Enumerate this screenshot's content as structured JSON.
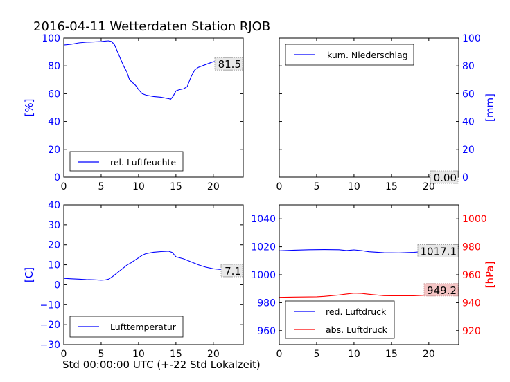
{
  "title": "2016-04-11 Wetterdaten Station RJOB",
  "footer_xlabel": "Std 00:00:00 UTC (+-22 Std Lokalzeit)",
  "colors": {
    "blue": "#0000ff",
    "red": "#ff0000",
    "black": "#000000",
    "readout_bg": "#e8e8e8",
    "readout_red_bg": "#f4c4c4"
  },
  "chart_data": [
    {
      "id": "humidity",
      "type": "line",
      "ylabel": "[%]",
      "ylabel_side": "left",
      "xlim": [
        0,
        24
      ],
      "ylim": [
        0,
        100
      ],
      "xticks": [
        0,
        5,
        10,
        15,
        20
      ],
      "yticks": [
        0,
        20,
        40,
        60,
        80,
        100
      ],
      "legend_position": "lower-left",
      "readout": "81.5",
      "series": [
        {
          "name": "rel. Luftfeuchte",
          "color": "#0000ff",
          "x": [
            0,
            1,
            2,
            3,
            4,
            5,
            5.5,
            6,
            6.4,
            6.8,
            7.2,
            7.6,
            8,
            8.4,
            8.8,
            9.2,
            9.6,
            10,
            10.5,
            11,
            12,
            13,
            13.5,
            14,
            14.3,
            14.6,
            15,
            15.5,
            16,
            16.5,
            17,
            17.5,
            18,
            19,
            20,
            20.5,
            21,
            22,
            23,
            24
          ],
          "y": [
            95,
            95.5,
            96.5,
            97,
            97.2,
            97.5,
            97.8,
            98,
            97.5,
            95,
            90,
            85,
            80,
            76,
            70,
            68,
            66,
            63,
            60,
            59,
            58,
            57.5,
            57,
            56.5,
            56,
            58,
            62,
            63,
            63.5,
            65,
            72,
            77,
            79,
            81,
            83,
            83.2,
            82,
            81.5,
            81.5,
            81.5
          ]
        }
      ]
    },
    {
      "id": "precipitation",
      "type": "line",
      "ylabel": "[mm]",
      "ylabel_side": "right",
      "xlim": [
        0,
        24
      ],
      "ylim": [
        0,
        100
      ],
      "xticks": [
        0,
        5,
        10,
        15,
        20
      ],
      "yticks": [
        0,
        20,
        40,
        60,
        80,
        100
      ],
      "legend_position": "upper-left",
      "readout": "0.00",
      "series": [
        {
          "name": "kum. Niederschlag",
          "color": "#0000ff",
          "x": [
            0,
            24
          ],
          "y": [
            0,
            0
          ]
        }
      ]
    },
    {
      "id": "temperature",
      "type": "line",
      "ylabel": "[C]",
      "ylabel_side": "left",
      "xlim": [
        0,
        24
      ],
      "ylim": [
        -30,
        40
      ],
      "xticks": [
        0,
        5,
        10,
        15,
        20
      ],
      "yticks": [
        -30,
        -20,
        -10,
        0,
        10,
        20,
        30,
        40
      ],
      "legend_position": "lower-left",
      "readout": "7.1",
      "series": [
        {
          "name": "Lufttemperatur",
          "color": "#0000ff",
          "x": [
            0,
            1,
            2,
            3,
            4,
            5,
            5.5,
            6,
            6.5,
            7,
            7.5,
            8,
            8.5,
            9,
            9.5,
            10,
            10.5,
            11,
            12,
            13,
            14,
            14.5,
            15,
            16,
            17,
            18,
            19,
            20,
            21,
            22,
            23,
            24
          ],
          "y": [
            3.2,
            3,
            2.8,
            2.6,
            2.5,
            2.3,
            2.4,
            2.8,
            4,
            5.5,
            7,
            8.5,
            10,
            11,
            12.3,
            13.5,
            14.8,
            15.6,
            16.3,
            16.6,
            16.8,
            16.2,
            14,
            13,
            11.5,
            10,
            8.8,
            8,
            7.6,
            7.3,
            7.2,
            7.1
          ]
        }
      ]
    },
    {
      "id": "pressure",
      "type": "line",
      "ylabel": "[hPa]",
      "ylabel_side": "right",
      "xlim": [
        0,
        24
      ],
      "ylim": [
        950,
        1050
      ],
      "yticks": [
        960,
        980,
        1000,
        1020,
        1040
      ],
      "y2lim": [
        910,
        1010
      ],
      "y2ticks": [
        920,
        940,
        960,
        980,
        1000
      ],
      "xticks": [
        0,
        5,
        10,
        15,
        20
      ],
      "legend_position": "lower-left",
      "readout": "1017.1",
      "readout2": "949.2",
      "series": [
        {
          "name": "red. Luftdruck",
          "color": "#0000ff",
          "axis": "left",
          "x": [
            0,
            2,
            4,
            6,
            8,
            9,
            10,
            11,
            12,
            14,
            16,
            18,
            20,
            22,
            24
          ],
          "y": [
            1017.2,
            1017.6,
            1017.9,
            1018,
            1017.9,
            1017.4,
            1017.8,
            1017.3,
            1016.5,
            1015.8,
            1015.7,
            1016.1,
            1016.9,
            1017.1,
            1017.1
          ]
        },
        {
          "name": "abs. Luftdruck",
          "color": "#ff0000",
          "axis": "right",
          "x": [
            0,
            2,
            4,
            5,
            6,
            7,
            8,
            9,
            10,
            11,
            12,
            13,
            14,
            15,
            16,
            18,
            20,
            22,
            24
          ],
          "y": [
            943.8,
            944,
            944.1,
            944.2,
            944.5,
            945,
            945.5,
            946.2,
            946.8,
            946.6,
            946,
            945.5,
            945,
            944.9,
            945,
            944.9,
            945.4,
            946.5,
            949.2
          ]
        }
      ]
    }
  ]
}
